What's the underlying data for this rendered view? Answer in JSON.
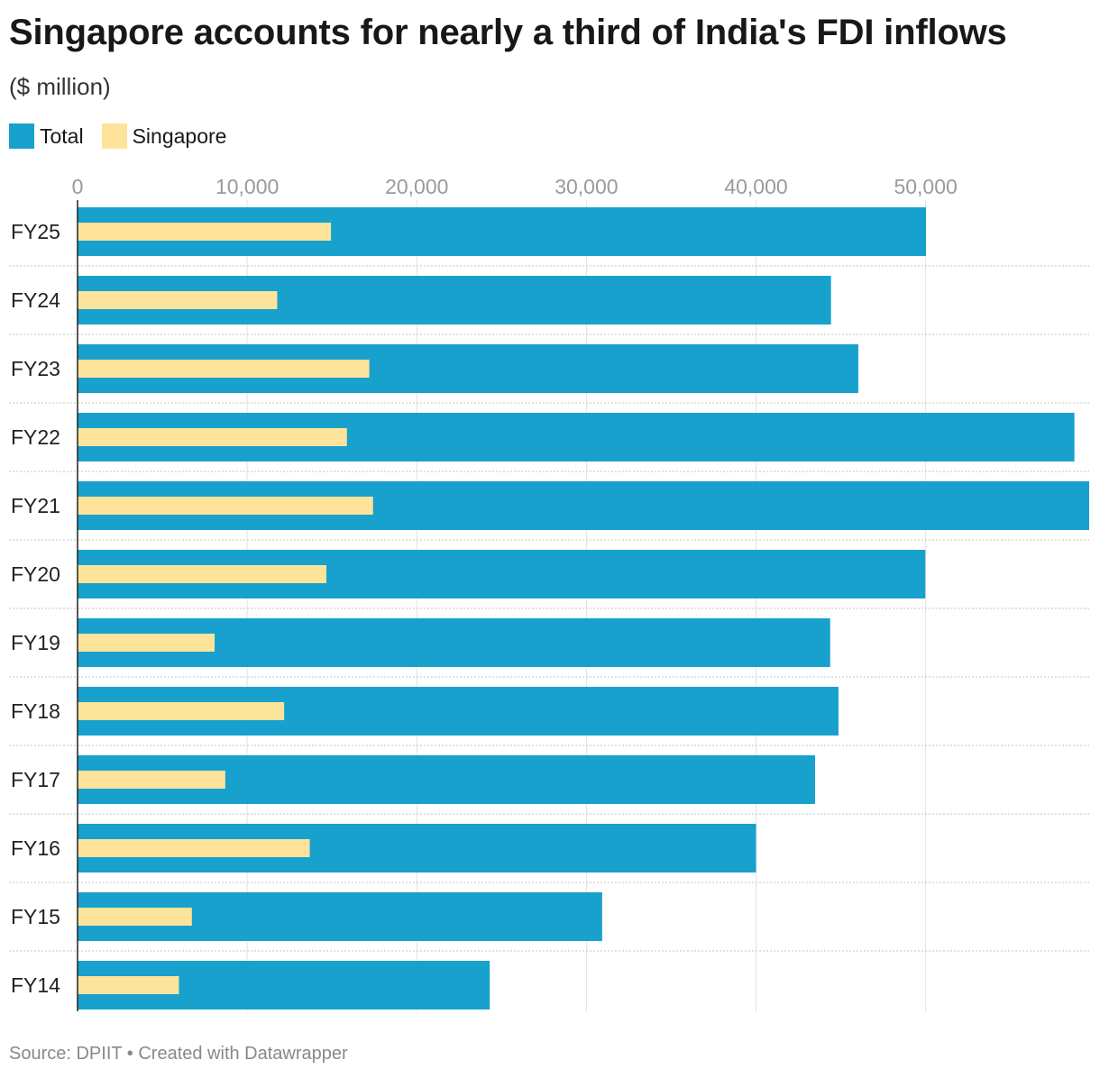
{
  "chart_data": {
    "type": "bar",
    "orientation": "horizontal",
    "title": "Singapore accounts for nearly a third of India's FDI inflows",
    "subtitle": "($ million)",
    "categories": [
      "FY25",
      "FY24",
      "FY23",
      "FY22",
      "FY21",
      "FY20",
      "FY19",
      "FY18",
      "FY17",
      "FY16",
      "FY15",
      "FY14"
    ],
    "series": [
      {
        "name": "Total",
        "color": "#18a1cd",
        "values": [
          50020,
          44420,
          46030,
          58770,
          59640,
          49980,
          44370,
          44860,
          43480,
          40000,
          30930,
          24300
        ]
      },
      {
        "name": "Singapore",
        "color": "#fee39a",
        "values": [
          14940,
          11770,
          17200,
          15880,
          17420,
          14670,
          8080,
          12180,
          8710,
          13690,
          6740,
          5980
        ]
      }
    ],
    "x_ticks": [
      0,
      10000,
      20000,
      30000,
      40000,
      50000
    ],
    "x_tick_labels": [
      "0",
      "10,000",
      "20,000",
      "30,000",
      "40,000",
      "50,000"
    ],
    "xlim": [
      0,
      59640
    ],
    "grid": true,
    "legend": "top-left"
  },
  "footer": "Source: DPIIT • Created with Datawrapper"
}
